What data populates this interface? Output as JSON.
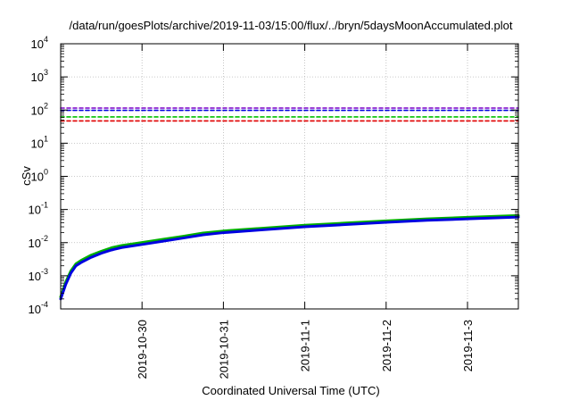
{
  "chart_data": {
    "type": "line",
    "title": "/data/run/goesPlots/archive/2019-11-03/15:00/flux/../bryn/5daysMoonAccumulated.plot",
    "xlabel": "Coordinated Universal Time (UTC)",
    "ylabel": "cSv",
    "yscale": "log",
    "ylim": [
      0.0001,
      10000
    ],
    "xlim": [
      "2019-10-29T00:00Z",
      "2019-11-03T15:00Z"
    ],
    "grid": true,
    "y_ticks": [
      {
        "base": "10",
        "exp": "-4",
        "value": 0.0001
      },
      {
        "base": "10",
        "exp": "-3",
        "value": 0.001
      },
      {
        "base": "10",
        "exp": "-2",
        "value": 0.01
      },
      {
        "base": "10",
        "exp": "-1",
        "value": 0.1
      },
      {
        "base": "10",
        "exp": "0",
        "value": 1
      },
      {
        "base": "10",
        "exp": "1",
        "value": 10
      },
      {
        "base": "10",
        "exp": "2",
        "value": 100
      },
      {
        "base": "10",
        "exp": "3",
        "value": 1000
      },
      {
        "base": "10",
        "exp": "4",
        "value": 10000
      }
    ],
    "x_ticks": [
      {
        "label": "2019-10-30",
        "value": "2019-10-30T00:00Z"
      },
      {
        "label": "2019-10-31",
        "value": "2019-10-31T00:00Z"
      },
      {
        "label": "2019-11-1",
        "value": "2019-11-01T00:00Z"
      },
      {
        "label": "2019-11-2",
        "value": "2019-11-02T00:00Z"
      },
      {
        "label": "2019-11-3",
        "value": "2019-11-03T00:00Z"
      }
    ],
    "series": [
      {
        "color": "#00b000",
        "style": "solid",
        "x": [
          "2019-10-29T00:00Z",
          "2019-10-29T01:30Z",
          "2019-10-29T03:00Z",
          "2019-10-29T04:30Z",
          "2019-10-29T06:00Z",
          "2019-10-29T09:00Z",
          "2019-10-29T12:00Z",
          "2019-10-29T15:00Z",
          "2019-10-29T18:00Z",
          "2019-10-30T00:00Z",
          "2019-10-30T06:00Z",
          "2019-10-30T12:00Z",
          "2019-10-30T18:00Z",
          "2019-10-31T00:00Z",
          "2019-10-31T12:00Z",
          "2019-11-01T00:00Z",
          "2019-11-01T12:00Z",
          "2019-11-02T00:00Z",
          "2019-11-02T12:00Z",
          "2019-11-03T00:00Z",
          "2019-11-03T15:00Z"
        ],
        "y": [
          0.00023,
          0.00065,
          0.0014,
          0.0023,
          0.0029,
          0.0042,
          0.0055,
          0.007,
          0.0082,
          0.0101,
          0.0125,
          0.0155,
          0.0195,
          0.0225,
          0.0275,
          0.0335,
          0.039,
          0.0455,
          0.052,
          0.058,
          0.066
        ]
      },
      {
        "color": "#0000e0",
        "style": "solid",
        "x": [
          "2019-10-29T00:00Z",
          "2019-10-29T01:30Z",
          "2019-10-29T03:00Z",
          "2019-10-29T04:30Z",
          "2019-10-29T06:00Z",
          "2019-10-29T09:00Z",
          "2019-10-29T12:00Z",
          "2019-10-29T15:00Z",
          "2019-10-29T18:00Z",
          "2019-10-30T00:00Z",
          "2019-10-30T06:00Z",
          "2019-10-30T12:00Z",
          "2019-10-30T18:00Z",
          "2019-10-31T00:00Z",
          "2019-10-31T12:00Z",
          "2019-11-01T00:00Z",
          "2019-11-01T12:00Z",
          "2019-11-02T00:00Z",
          "2019-11-02T12:00Z",
          "2019-11-03T00:00Z",
          "2019-11-03T15:00Z"
        ],
        "y": [
          0.0002,
          0.00055,
          0.0012,
          0.002,
          0.0025,
          0.0036,
          0.0048,
          0.006,
          0.0071,
          0.0088,
          0.011,
          0.0137,
          0.0172,
          0.02,
          0.0245,
          0.03,
          0.035,
          0.041,
          0.047,
          0.052,
          0.059
        ]
      },
      {
        "color": "#7b00c8",
        "style": "dashed",
        "x": [
          "2019-10-29T00:00Z",
          "2019-11-03T15:00Z"
        ],
        "y": [
          115,
          115
        ]
      },
      {
        "color": "#0000e0",
        "style": "dashed",
        "x": [
          "2019-10-29T00:00Z",
          "2019-11-03T15:00Z"
        ],
        "y": [
          98,
          98
        ]
      },
      {
        "color": "#00c000",
        "style": "dashed",
        "x": [
          "2019-10-29T00:00Z",
          "2019-11-03T15:00Z"
        ],
        "y": [
          62,
          62
        ]
      },
      {
        "color": "#e00000",
        "style": "dashed",
        "x": [
          "2019-10-29T00:00Z",
          "2019-11-03T15:00Z"
        ],
        "y": [
          47,
          47
        ]
      }
    ]
  }
}
